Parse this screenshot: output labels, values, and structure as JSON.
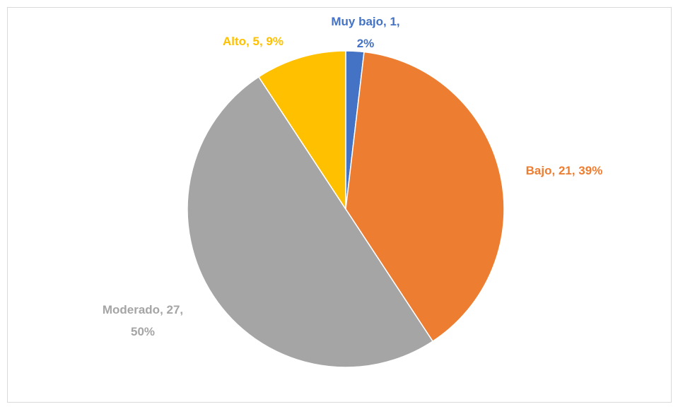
{
  "chart_data": {
    "type": "pie",
    "values": [
      1,
      21,
      27,
      5
    ],
    "value_labels": [
      [
        "Muy bajo, 1,",
        "2%"
      ],
      [
        "Bajo, 21, 39%"
      ],
      [
        "Moderado, 27,",
        "50%"
      ],
      [
        "Alto, 5, 9%"
      ]
    ],
    "colors": [
      "#4472c4",
      "#ed7d31",
      "#a5a5a5",
      "#ffc000"
    ]
  }
}
